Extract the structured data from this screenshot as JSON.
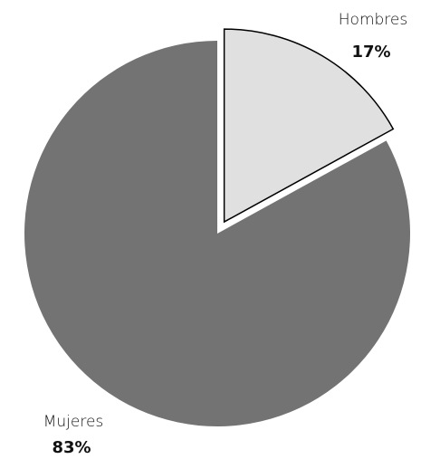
{
  "chart_data": {
    "type": "pie",
    "categories": [
      "Hombres",
      "Mujeres"
    ],
    "values": [
      17,
      83
    ],
    "value_labels": [
      "17%",
      "83%"
    ],
    "colors": [
      "#e0e0e0",
      "#737373"
    ],
    "exploded": [
      true,
      false
    ]
  }
}
